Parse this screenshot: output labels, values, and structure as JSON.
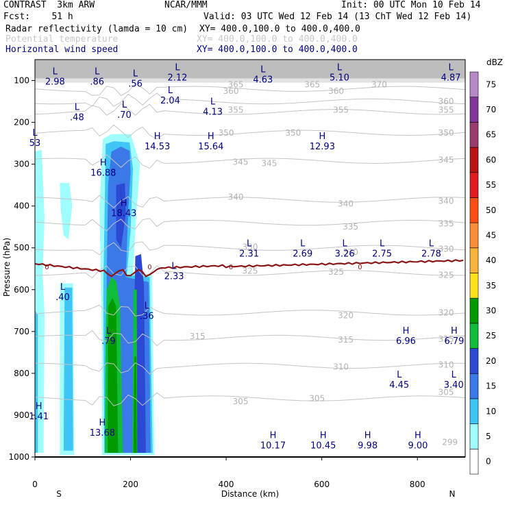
{
  "header": {
    "model": "CONTRAST  3km ARW",
    "org": "NCAR/MMM",
    "init": "Init: 00 UTC Mon 10 Feb 14",
    "fcst": "Fcst:    51 h",
    "valid": "Valid: 03 UTC Wed 12 Feb 14 (13 ChT Wed 12 Feb 14)",
    "fields": [
      {
        "name": "Radar reflectivity (lamda = 10 cm)",
        "xy": "XY= 400.0,100.0 to 400.0,400.0",
        "color": "#000000"
      },
      {
        "name": "Potential temperature",
        "xy": "XY= 400.0,100.0 to 400.0,400.0",
        "color": "#c8c8c8"
      },
      {
        "name": "Horizontal wind speed",
        "xy": "XY= 400.0,100.0 to 400.0,400.0",
        "color": "#000080"
      }
    ]
  },
  "chart_data": {
    "type": "cross-section",
    "title": "Radar reflectivity, potential temperature and horizontal wind speed cross section",
    "xlabel": "Distance (km)",
    "ylabel": "Pressure (hPa)",
    "xlim": [
      0,
      900
    ],
    "ylim": [
      1000,
      50
    ],
    "xticks": [
      0,
      200,
      400,
      600,
      800
    ],
    "yticks": [
      100,
      200,
      300,
      400,
      500,
      600,
      700,
      800,
      900,
      1000
    ],
    "x_end_labels": {
      "left": "S",
      "right": "N"
    },
    "colorbar": {
      "unit": "dBZ",
      "levels": [
        0,
        5,
        10,
        15,
        20,
        25,
        30,
        35,
        40,
        45,
        50,
        55,
        60,
        65,
        70,
        75
      ],
      "colors": [
        "#ffffff",
        "#9ffdfd",
        "#3fc6f6",
        "#3b78e8",
        "#2b49d3",
        "#10bd3a",
        "#009a00",
        "#fde21a",
        "#f9b43a",
        "#fb8c3a",
        "#fc4e12",
        "#e01c1c",
        "#b81414",
        "#9b3c6e",
        "#81379a",
        "#b889c7"
      ]
    },
    "theta_contour_labels": [
      {
        "x": 720,
        "p": 110,
        "text": "370"
      },
      {
        "x": 580,
        "p": 110,
        "text": "365"
      },
      {
        "x": 420,
        "p": 110,
        "text": "365"
      },
      {
        "x": 630,
        "p": 125,
        "text": "360"
      },
      {
        "x": 410,
        "p": 125,
        "text": "360"
      },
      {
        "x": 860,
        "p": 150,
        "text": "360"
      },
      {
        "x": 420,
        "p": 170,
        "text": "355"
      },
      {
        "x": 640,
        "p": 170,
        "text": "355"
      },
      {
        "x": 860,
        "p": 170,
        "text": "355"
      },
      {
        "x": 400,
        "p": 225,
        "text": "350"
      },
      {
        "x": 540,
        "p": 225,
        "text": "350"
      },
      {
        "x": 860,
        "p": 225,
        "text": "350"
      },
      {
        "x": 430,
        "p": 295,
        "text": "345"
      },
      {
        "x": 490,
        "p": 298,
        "text": "345"
      },
      {
        "x": 860,
        "p": 290,
        "text": "345"
      },
      {
        "x": 420,
        "p": 378,
        "text": "340"
      },
      {
        "x": 650,
        "p": 395,
        "text": "340"
      },
      {
        "x": 860,
        "p": 388,
        "text": "340"
      },
      {
        "x": 660,
        "p": 450,
        "text": "335"
      },
      {
        "x": 860,
        "p": 442,
        "text": "335"
      },
      {
        "x": 450,
        "p": 498,
        "text": "330"
      },
      {
        "x": 660,
        "p": 510,
        "text": "330"
      },
      {
        "x": 860,
        "p": 503,
        "text": "330"
      },
      {
        "x": 450,
        "p": 555,
        "text": "325"
      },
      {
        "x": 630,
        "p": 558,
        "text": "325"
      },
      {
        "x": 860,
        "p": 565,
        "text": "325"
      },
      {
        "x": 650,
        "p": 662,
        "text": "320"
      },
      {
        "x": 860,
        "p": 655,
        "text": "320"
      },
      {
        "x": 340,
        "p": 712,
        "text": "315"
      },
      {
        "x": 650,
        "p": 720,
        "text": "315"
      },
      {
        "x": 860,
        "p": 718,
        "text": "315"
      },
      {
        "x": 640,
        "p": 785,
        "text": "310"
      },
      {
        "x": 860,
        "p": 780,
        "text": "310"
      },
      {
        "x": 430,
        "p": 867,
        "text": "305"
      },
      {
        "x": 590,
        "p": 860,
        "text": "305"
      },
      {
        "x": 860,
        "p": 845,
        "text": "305"
      },
      {
        "x": 868,
        "p": 965,
        "text": "299"
      }
    ],
    "freezing_label": "0",
    "wind_speed_extrema": [
      {
        "type": "L",
        "x": 42,
        "p": 85,
        "value": "2.98"
      },
      {
        "type": "L",
        "x": 130,
        "p": 85,
        "value": ".86"
      },
      {
        "type": "L",
        "x": 210,
        "p": 90,
        "value": ".56"
      },
      {
        "type": "L",
        "x": 298,
        "p": 75,
        "value": "2.12"
      },
      {
        "type": "L",
        "x": 477,
        "p": 80,
        "value": "4.63"
      },
      {
        "type": "L",
        "x": 637,
        "p": 75,
        "value": "5.10"
      },
      {
        "type": "L",
        "x": 870,
        "p": 75,
        "value": "4.87"
      },
      {
        "type": "L",
        "x": 283,
        "p": 130,
        "value": "2.04"
      },
      {
        "type": "L",
        "x": 372,
        "p": 157,
        "value": "4.13"
      },
      {
        "type": "L",
        "x": 88,
        "p": 170,
        "value": ".48"
      },
      {
        "type": "L",
        "x": 187,
        "p": 165,
        "value": ".70"
      },
      {
        "type": "L",
        "x": 0,
        "p": 232,
        "value": "53"
      },
      {
        "type": "H",
        "x": 256,
        "p": 240,
        "value": "14.53"
      },
      {
        "type": "H",
        "x": 368,
        "p": 240,
        "value": "15.64"
      },
      {
        "type": "H",
        "x": 601,
        "p": 240,
        "value": "12.93"
      },
      {
        "type": "H",
        "x": 143,
        "p": 303,
        "value": "16.88"
      },
      {
        "type": "H",
        "x": 186,
        "p": 400,
        "value": "18.43"
      },
      {
        "type": "L",
        "x": 448,
        "p": 496,
        "value": "2.31"
      },
      {
        "type": "L",
        "x": 560,
        "p": 496,
        "value": "2.69"
      },
      {
        "type": "L",
        "x": 648,
        "p": 496,
        "value": "3.26"
      },
      {
        "type": "L",
        "x": 726,
        "p": 496,
        "value": "2.75"
      },
      {
        "type": "L",
        "x": 829,
        "p": 496,
        "value": "2.78"
      },
      {
        "type": "L",
        "x": 291,
        "p": 550,
        "value": "2.33"
      },
      {
        "type": "L",
        "x": 58,
        "p": 600,
        "value": ".40"
      },
      {
        "type": "L",
        "x": 234,
        "p": 645,
        "value": ".36"
      },
      {
        "type": "L",
        "x": 154,
        "p": 705,
        "value": ".79"
      },
      {
        "type": "H",
        "x": 776,
        "p": 705,
        "value": "6.96"
      },
      {
        "type": "H",
        "x": 877,
        "p": 705,
        "value": "6.79"
      },
      {
        "type": "L",
        "x": 762,
        "p": 810,
        "value": "4.45"
      },
      {
        "type": "L",
        "x": 876,
        "p": 810,
        "value": "3.40"
      },
      {
        "type": "H",
        "x": 8,
        "p": 885,
        "value": "1.41"
      },
      {
        "type": "H",
        "x": 141,
        "p": 925,
        "value": "13.68"
      },
      {
        "type": "H",
        "x": 498,
        "p": 955,
        "value": "10.17"
      },
      {
        "type": "H",
        "x": 603,
        "p": 955,
        "value": "10.45"
      },
      {
        "type": "H",
        "x": 696,
        "p": 955,
        "value": "9.98"
      },
      {
        "type": "H",
        "x": 801,
        "p": 955,
        "value": "9.00"
      }
    ]
  }
}
